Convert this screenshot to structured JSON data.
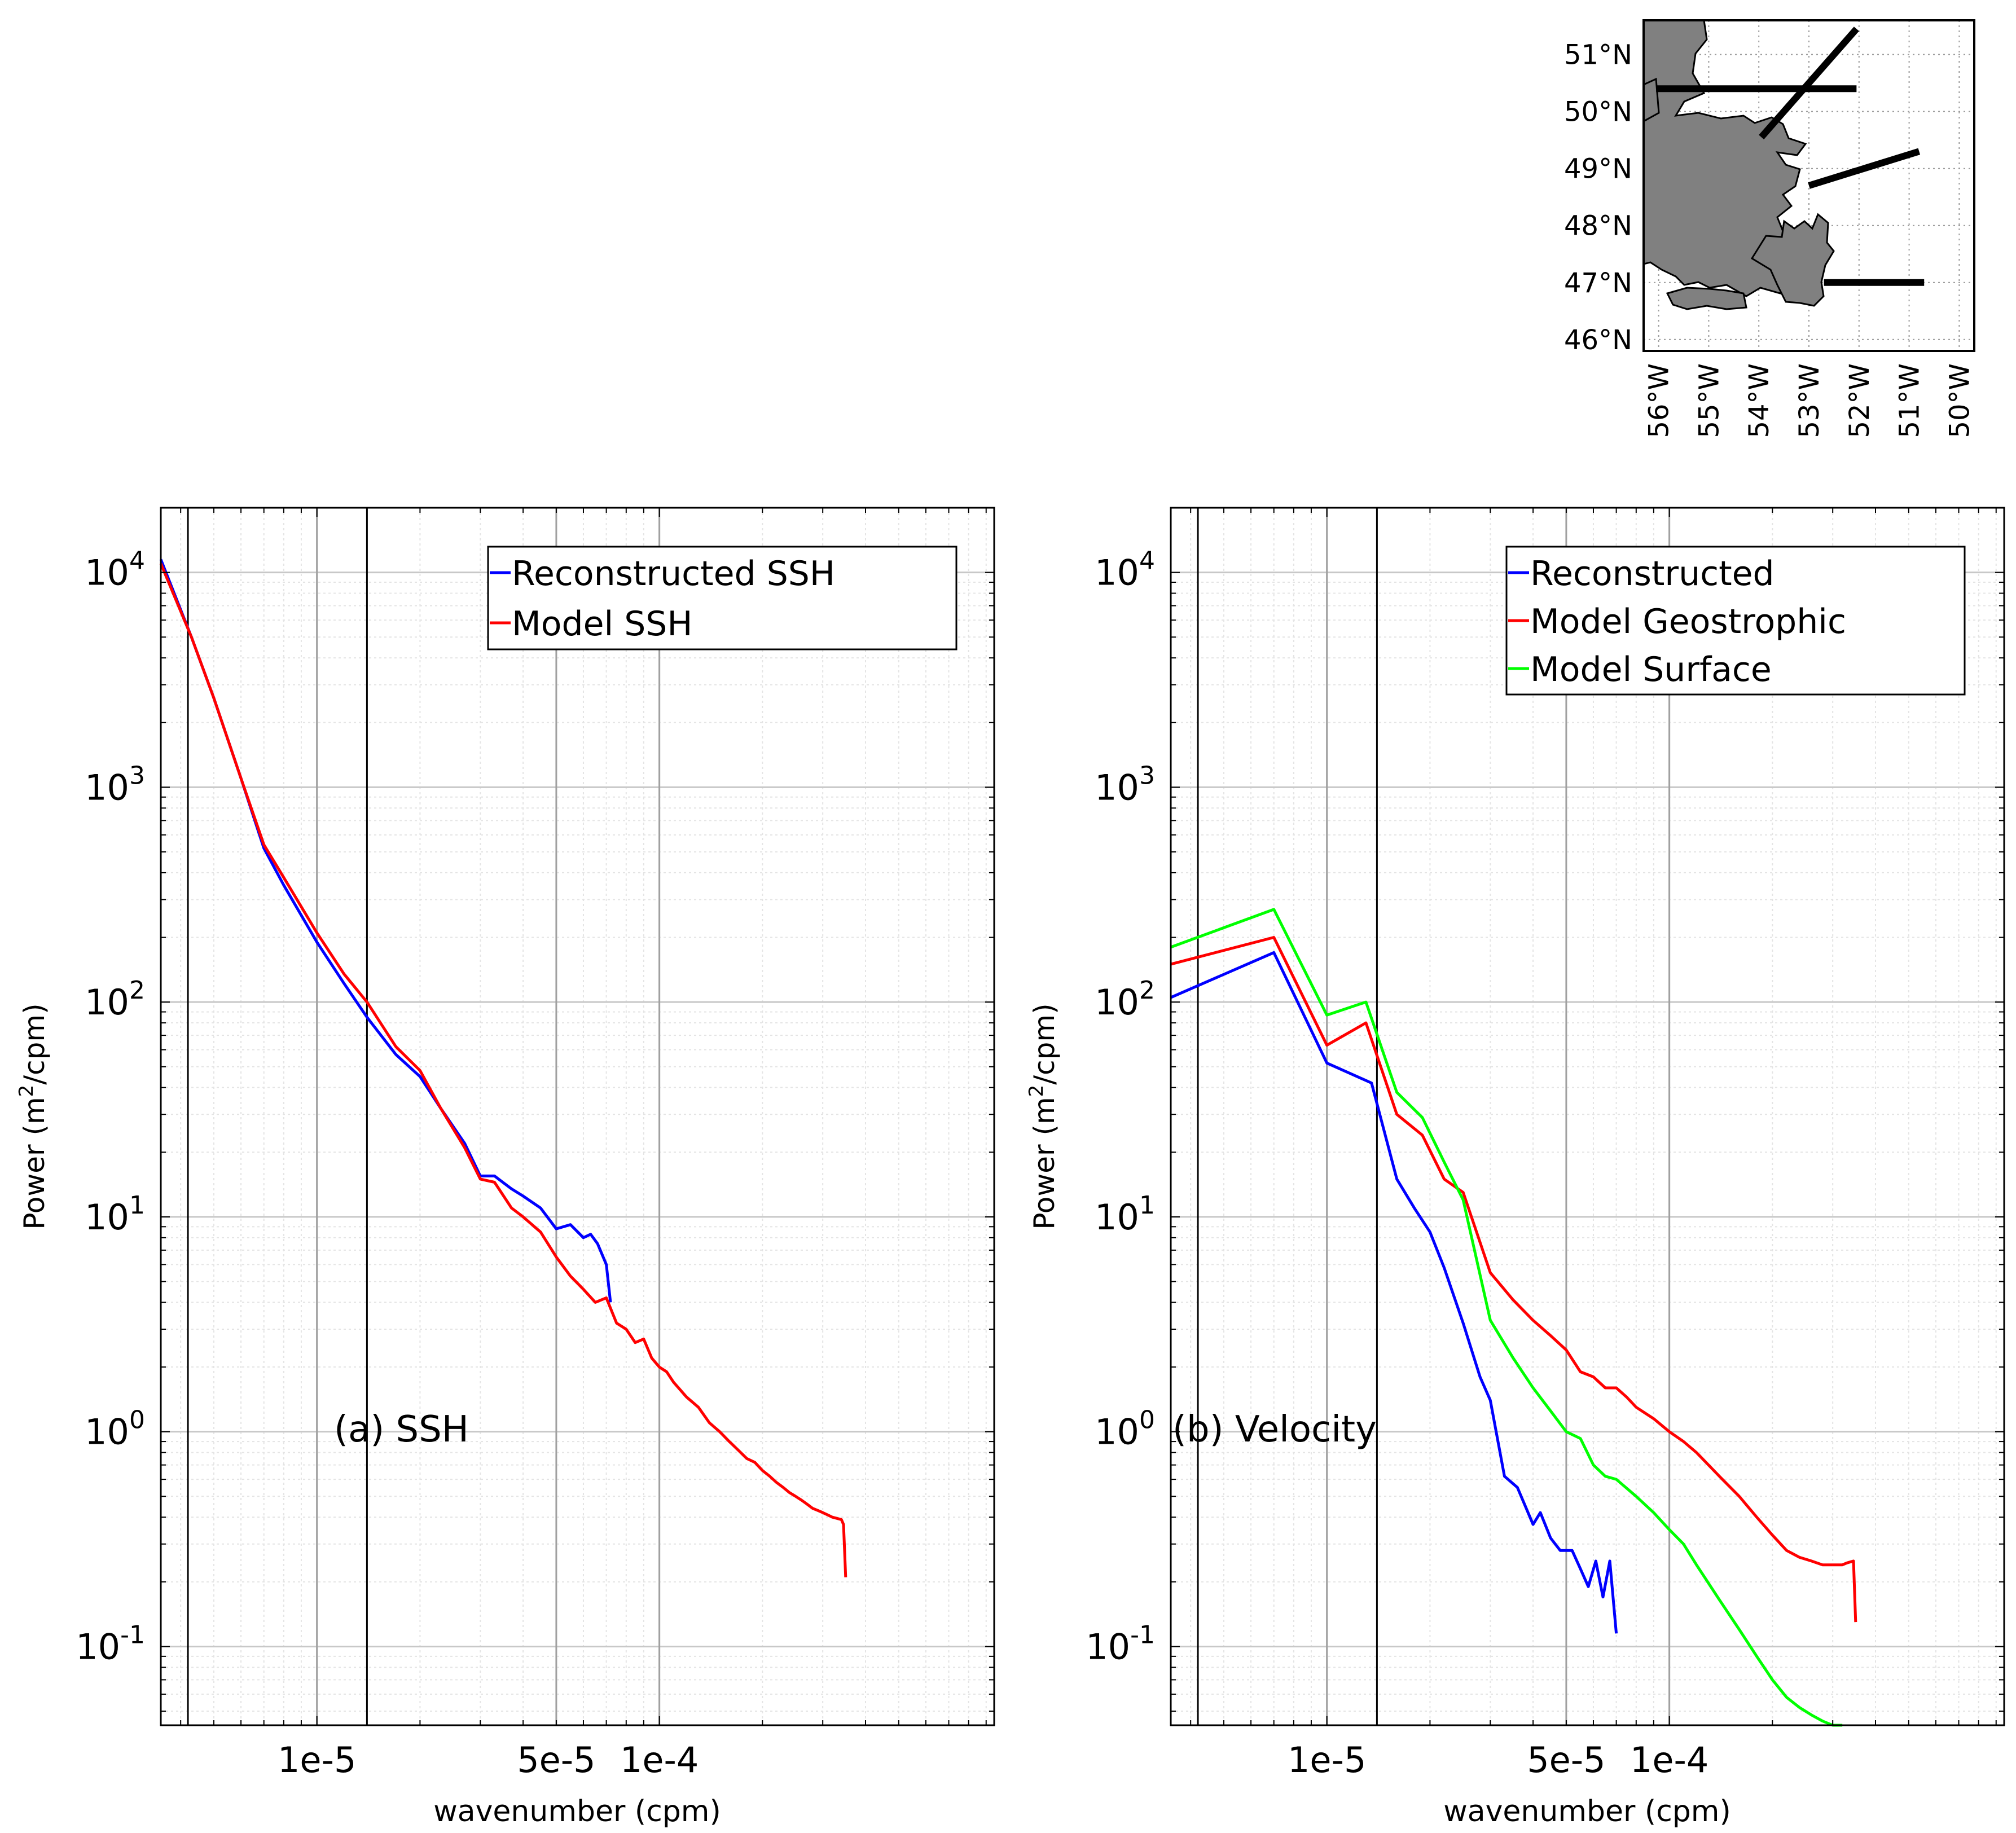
{
  "chart_data": [
    {
      "id": "a",
      "type": "line",
      "panel_label": "(a) SSH",
      "xlabel": "wavenumber (cpm)",
      "ylabel": "Power (m2/cpm)",
      "xscale": "log",
      "yscale": "log",
      "xlim": [
        3.5e-06,
        0.00095
      ],
      "ylim": [
        0.043,
        20000
      ],
      "xticks": [
        {
          "v": 1e-05,
          "label": "1e-5"
        },
        {
          "v": 5e-05,
          "label": "5e-5"
        },
        {
          "v": 0.0001,
          "label": "1e-4"
        }
      ],
      "yticks": [
        {
          "v": 10000.0,
          "b": "10",
          "e": "4"
        },
        {
          "v": 1000.0,
          "b": "10",
          "e": "3"
        },
        {
          "v": 100.0,
          "b": "10",
          "e": "2"
        },
        {
          "v": 10.0,
          "b": "10",
          "e": "1"
        },
        {
          "v": 1,
          "b": "10",
          "e": "0"
        },
        {
          "v": 0.1,
          "b": "10",
          "e": "-1"
        }
      ],
      "vlines": [
        4.2e-06,
        1.4e-05
      ],
      "grid": true,
      "legend_position": "top-right",
      "series": [
        {
          "name": "Reconstructed SSH",
          "color": "#0000ff",
          "x": [
            3.5e-06,
            4.3e-06,
            5e-06,
            6e-06,
            7e-06,
            8e-06,
            1e-05,
            1.2e-05,
            1.4e-05,
            1.7e-05,
            2e-05,
            2.3e-05,
            2.7e-05,
            3e-05,
            3.3e-05,
            3.7e-05,
            4e-05,
            4.5e-05,
            5e-05,
            5.5e-05,
            6e-05,
            6.3e-05,
            6.6e-05,
            7e-05,
            7.2e-05
          ],
          "y": [
            11500,
            5000,
            2600,
            1100,
            520,
            350,
            190,
            122,
            85,
            57,
            45,
            32,
            22,
            15.5,
            15.5,
            13.5,
            12.5,
            11,
            8.8,
            9.2,
            8.0,
            8.3,
            7.5,
            6.0,
            4.0
          ]
        },
        {
          "name": "Model SSH",
          "color": "#ff0000",
          "x": [
            3.5e-06,
            4.3e-06,
            5e-06,
            6e-06,
            7e-06,
            8e-06,
            1e-05,
            1.2e-05,
            1.4e-05,
            1.7e-05,
            2e-05,
            2.3e-05,
            2.7e-05,
            3e-05,
            3.3e-05,
            3.7e-05,
            4e-05,
            4.5e-05,
            5e-05,
            5.5e-05,
            6e-05,
            6.5e-05,
            7e-05,
            7.5e-05,
            8e-05,
            8.5e-05,
            9e-05,
            9.5e-05,
            0.0001,
            0.000105,
            0.00011,
            0.00012,
            0.00013,
            0.00014,
            0.00015,
            0.00016,
            0.00017,
            0.00018,
            0.00019,
            0.0002,
            0.00021,
            0.00022,
            0.00023,
            0.00024,
            0.00025,
            0.00026,
            0.00027,
            0.00028,
            0.00029,
            0.0003,
            0.00031,
            0.00032,
            0.00033,
            0.00034,
            0.000345,
            0.00035
          ],
          "y": [
            11000,
            5000,
            2600,
            1100,
            540,
            380,
            210,
            135,
            100,
            62,
            48,
            32,
            21,
            15,
            14.5,
            11,
            10,
            8.5,
            6.5,
            5.3,
            4.6,
            4.0,
            4.2,
            3.2,
            3.0,
            2.6,
            2.7,
            2.2,
            2.0,
            1.9,
            1.7,
            1.45,
            1.3,
            1.1,
            1.0,
            0.9,
            0.82,
            0.75,
            0.72,
            0.66,
            0.62,
            0.58,
            0.55,
            0.52,
            0.5,
            0.48,
            0.46,
            0.44,
            0.43,
            0.42,
            0.41,
            0.4,
            0.395,
            0.39,
            0.37,
            0.21
          ]
        }
      ]
    },
    {
      "id": "b",
      "type": "line",
      "panel_label": "(b) Velocity",
      "xlabel": "wavenumber (cpm)",
      "ylabel": "Power (m2/cpm)",
      "xscale": "log",
      "yscale": "log",
      "xlim": [
        3.5e-06,
        0.00095
      ],
      "ylim": [
        0.043,
        20000
      ],
      "xticks": [
        {
          "v": 1e-05,
          "label": "1e-5"
        },
        {
          "v": 5e-05,
          "label": "5e-5"
        },
        {
          "v": 0.0001,
          "label": "1e-4"
        }
      ],
      "yticks": [
        {
          "v": 10000.0,
          "b": "10",
          "e": "4"
        },
        {
          "v": 1000.0,
          "b": "10",
          "e": "3"
        },
        {
          "v": 100.0,
          "b": "10",
          "e": "2"
        },
        {
          "v": 10.0,
          "b": "10",
          "e": "1"
        },
        {
          "v": 1,
          "b": "10",
          "e": "0"
        },
        {
          "v": 0.1,
          "b": "10",
          "e": "-1"
        }
      ],
      "vlines": [
        4.2e-06,
        1.4e-05
      ],
      "grid": true,
      "legend_position": "top-right",
      "series": [
        {
          "name": "Reconstructed",
          "color": "#0000ff",
          "x": [
            3.5e-06,
            7e-06,
            1e-05,
            1.35e-05,
            1.6e-05,
            1.8e-05,
            2e-05,
            2.2e-05,
            2.5e-05,
            2.8e-05,
            3e-05,
            3.3e-05,
            3.6e-05,
            4e-05,
            4.2e-05,
            4.5e-05,
            4.8e-05,
            5.2e-05,
            5.5e-05,
            5.8e-05,
            6.1e-05,
            6.4e-05,
            6.7e-05,
            7e-05
          ],
          "y": [
            105,
            170,
            52,
            42,
            15,
            11,
            8.5,
            5.8,
            3.2,
            1.8,
            1.4,
            0.62,
            0.55,
            0.37,
            0.42,
            0.32,
            0.28,
            0.28,
            0.23,
            0.19,
            0.25,
            0.17,
            0.25,
            0.115
          ]
        },
        {
          "name": "Model Geostrophic",
          "color": "#ff0000",
          "x": [
            3.5e-06,
            7e-06,
            1e-05,
            1.3e-05,
            1.6e-05,
            1.9e-05,
            2.2e-05,
            2.5e-05,
            3e-05,
            3.5e-05,
            4e-05,
            4.5e-05,
            5e-05,
            5.5e-05,
            6e-05,
            6.5e-05,
            7e-05,
            7.5e-05,
            8e-05,
            9e-05,
            0.0001,
            0.00011,
            0.00012,
            0.00014,
            0.00016,
            0.00018,
            0.0002,
            0.00022,
            0.00024,
            0.00026,
            0.00028,
            0.0003,
            0.00032,
            0.00033,
            0.000345,
            0.00035
          ],
          "y": [
            150,
            200,
            63,
            80,
            30,
            24,
            15,
            13,
            5.5,
            4.1,
            3.3,
            2.8,
            2.4,
            1.9,
            1.8,
            1.6,
            1.6,
            1.45,
            1.3,
            1.15,
            1.0,
            0.9,
            0.8,
            0.62,
            0.5,
            0.4,
            0.33,
            0.28,
            0.26,
            0.25,
            0.24,
            0.24,
            0.24,
            0.245,
            0.25,
            0.13
          ]
        },
        {
          "name": "Model Surface",
          "color": "#00ff00",
          "x": [
            3.5e-06,
            7e-06,
            1e-05,
            1.3e-05,
            1.6e-05,
            1.9e-05,
            2.2e-05,
            2.5e-05,
            3e-05,
            3.5e-05,
            4e-05,
            4.5e-05,
            5e-05,
            5.5e-05,
            6e-05,
            6.5e-05,
            7e-05,
            8e-05,
            9e-05,
            0.0001,
            0.00011,
            0.00012,
            0.00014,
            0.00016,
            0.00018,
            0.0002,
            0.00022,
            0.00024,
            0.00026,
            0.00028,
            0.0003,
            0.00032
          ],
          "y": [
            180,
            270,
            87,
            100,
            38,
            29,
            18,
            12,
            3.3,
            2.2,
            1.6,
            1.25,
            1.0,
            0.93,
            0.7,
            0.62,
            0.6,
            0.5,
            0.42,
            0.35,
            0.3,
            0.24,
            0.165,
            0.12,
            0.09,
            0.07,
            0.058,
            0.052,
            0.048,
            0.045,
            0.043,
            0.043
          ]
        }
      ]
    }
  ],
  "map": {
    "lat_labels": [
      "51°N",
      "50°N",
      "49°N",
      "48°N",
      "47°N",
      "46°N"
    ],
    "lon_labels": [
      "56°W",
      "55°W",
      "54°W",
      "53°W",
      "52°W",
      "51°W",
      "50°W"
    ],
    "lat_values": [
      51,
      50,
      49,
      48,
      47,
      46
    ],
    "lon_values": [
      56,
      55,
      54,
      53,
      52,
      51,
      50
    ],
    "lat_range": [
      45.8,
      51.6
    ],
    "lon_range": [
      56.3,
      49.7
    ],
    "tracks": [
      {
        "name": "track-1",
        "lon1": 56.05,
        "lat1": 50.4,
        "lon2": 52.05,
        "lat2": 50.4
      },
      {
        "name": "track-2",
        "lon1": 53.95,
        "lat1": 49.55,
        "lon2": 52.05,
        "lat2": 51.45
      },
      {
        "name": "track-3",
        "lon1": 53.0,
        "lat1": 48.7,
        "lon2": 50.8,
        "lat2": 49.3
      },
      {
        "name": "track-4",
        "lon1": 52.7,
        "lat1": 47.0,
        "lon2": 50.7,
        "lat2": 47.0
      }
    ],
    "land_color": "#808080",
    "track_color": "#000000"
  }
}
